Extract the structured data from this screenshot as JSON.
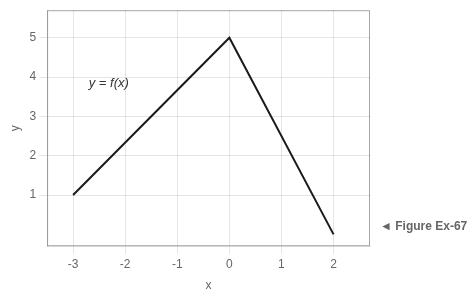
{
  "chart_data": {
    "type": "line",
    "x": [
      -3,
      0,
      2
    ],
    "values": [
      1,
      5,
      0
    ],
    "color": "#1a1a1a",
    "xlim": [
      -3.5,
      2.7
    ],
    "ylim": [
      -0.3,
      5.7
    ],
    "xticks": [
      -3,
      -2,
      -1,
      0,
      1,
      2
    ],
    "yticks": [
      1,
      2,
      3,
      4,
      5
    ],
    "xlabel": "x",
    "ylabel": "y",
    "grid": true,
    "annotations": [
      {
        "text": "y = f(x)",
        "x": -2.7,
        "y": 3.85
      },
      {
        "text": "◄ Figure Ex-67"
      }
    ]
  }
}
